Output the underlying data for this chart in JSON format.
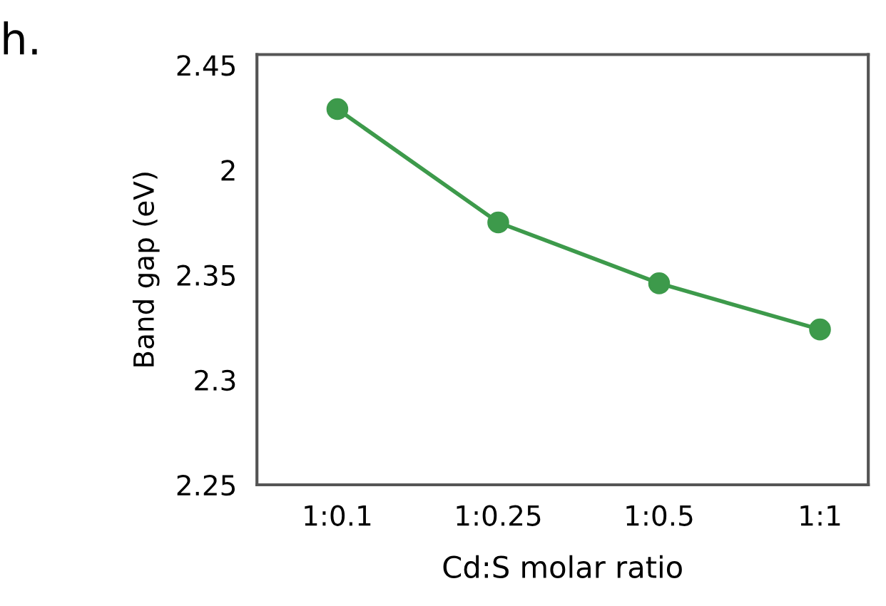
{
  "chart_data": {
    "type": "line",
    "xlabel": "Cd:S molar ratio",
    "ylabel": "Band gap (eV)",
    "categories": [
      "1:0.1",
      "1:0.25",
      "1:0.5",
      "1:1"
    ],
    "series": [
      {
        "color": "#3d9a4b",
        "values": [
          2.429,
          2.375,
          2.346,
          2.324
        ]
      }
    ],
    "ylim": [
      2.25,
      2.455
    ],
    "yticks": [
      2.25,
      2.3,
      2.35,
      {
        "value": 2.4,
        "label": "2"
      },
      2.45
    ],
    "marker": "circle",
    "line_style": "solid",
    "grid": false,
    "legend": false,
    "annotations": [
      "h."
    ]
  }
}
